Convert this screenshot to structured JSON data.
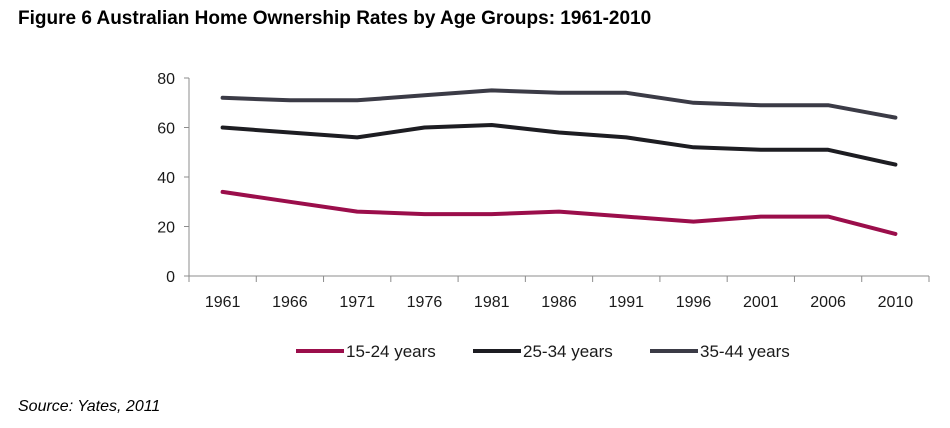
{
  "title": "Figure 6 Australian Home Ownership Rates by Age Groups: 1961-2010",
  "source": "Source: Yates, 2011",
  "chart_data": {
    "type": "line",
    "title": "Figure 6 Australian Home Ownership Rates by Age Groups: 1961-2010",
    "xlabel": "",
    "ylabel": "",
    "ylim": [
      0,
      80
    ],
    "yticks": [
      "0",
      "20",
      "40",
      "60",
      "80"
    ],
    "categories": [
      "1961",
      "1966",
      "1971",
      "1976",
      "1981",
      "1986",
      "1991",
      "1996",
      "2001",
      "2006",
      "2010"
    ],
    "grid": false,
    "legend_position": "bottom",
    "series": [
      {
        "name": "15-24 years",
        "color": "#9b0e4b",
        "values": [
          34,
          30,
          26,
          25,
          25,
          26,
          24,
          22,
          24,
          24,
          17
        ]
      },
      {
        "name": "25-34 years",
        "color": "#1d1d22",
        "values": [
          60,
          58,
          56,
          60,
          61,
          58,
          56,
          52,
          51,
          51,
          45
        ]
      },
      {
        "name": "35-44 years",
        "color": "#3b3b46",
        "values": [
          72,
          71,
          71,
          73,
          75,
          74,
          74,
          70,
          69,
          69,
          64
        ]
      }
    ]
  }
}
